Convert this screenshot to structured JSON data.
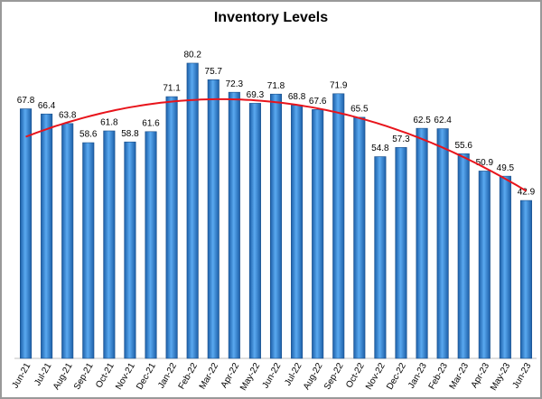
{
  "chart_data": {
    "type": "bar",
    "title": "Inventory Levels",
    "categories": [
      "Jun-21",
      "Jul-21",
      "Aug-21",
      "Sep-21",
      "Oct-21",
      "Nov-21",
      "Dec-21",
      "Jan-22",
      "Feb-22",
      "Mar-22",
      "Apr-22",
      "May-22",
      "Jun-22",
      "Jul-22",
      "Aug-22",
      "Sep-22",
      "Oct-22",
      "Nov-22",
      "Dec-22",
      "Jan-23",
      "Feb-23",
      "Mar-23",
      "Apr-23",
      "May-23",
      "Jun-23"
    ],
    "values": [
      67.8,
      66.4,
      63.8,
      58.6,
      61.8,
      58.8,
      61.6,
      71.1,
      80.2,
      75.7,
      72.3,
      69.3,
      71.8,
      68.8,
      67.6,
      71.9,
      65.5,
      54.8,
      57.3,
      62.5,
      62.4,
      55.6,
      50.9,
      49.5,
      42.9
    ],
    "color": "#3a8ee0",
    "ylim": [
      0,
      90
    ],
    "trendline": {
      "type": "polynomial",
      "order": 2,
      "color": "#e8141b"
    }
  }
}
